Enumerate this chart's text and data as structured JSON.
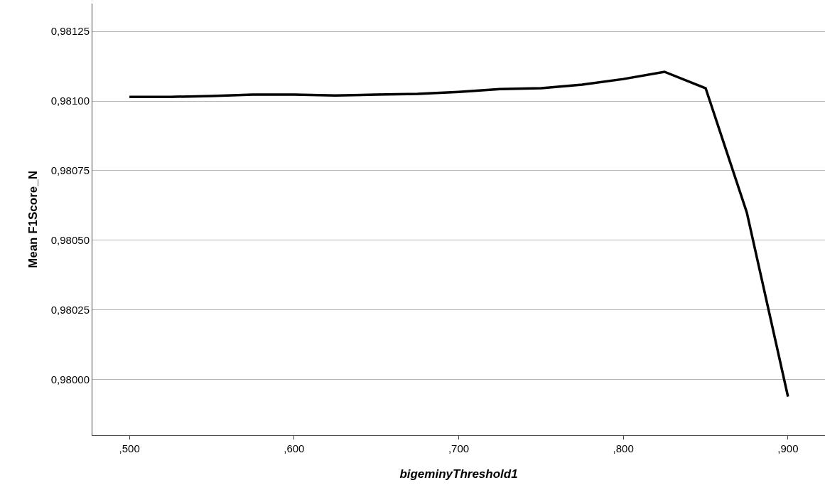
{
  "chart_data": {
    "type": "line",
    "xlabel": "bigeminyThreshold1",
    "ylabel": "Mean F1Score_N",
    "categories": [
      ",500",
      null,
      null,
      null,
      ",600",
      null,
      null,
      null,
      ",700",
      null,
      null,
      null,
      ",800",
      null,
      null,
      null,
      ",900"
    ],
    "series": [
      {
        "color": "#000000",
        "values": [
          0.981015,
          0.981015,
          0.981018,
          0.981023,
          0.981023,
          0.98102,
          0.981023,
          0.981026,
          0.981033,
          0.981043,
          0.981046,
          0.981059,
          0.981079,
          0.981105,
          0.981046,
          0.9806,
          0.979939
        ]
      }
    ],
    "ylim": [
      0.9798,
      0.98135
    ],
    "yticks": [
      {
        "value": 0.98,
        "label": "0,98000"
      },
      {
        "value": 0.98025,
        "label": "0,98025"
      },
      {
        "value": 0.9805,
        "label": "0,98050"
      },
      {
        "value": 0.98075,
        "label": "0,98075"
      },
      {
        "value": 0.981,
        "label": "0,98100"
      },
      {
        "value": 0.98125,
        "label": "0,98125"
      }
    ],
    "grid": "y",
    "marker": "none",
    "line_style": "solid"
  }
}
